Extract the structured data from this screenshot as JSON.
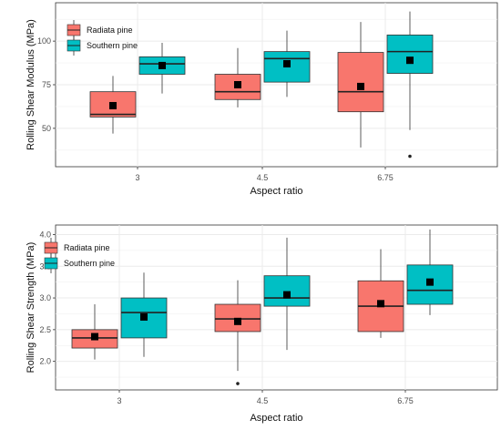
{
  "chart_data": [
    {
      "type": "box",
      "xlabel": "Aspect ratio",
      "ylabel": "Rolling Shear Modulus (MPa)",
      "categories": [
        "3",
        "4.5",
        "6.75"
      ],
      "yticks": [
        50,
        75,
        100
      ],
      "ylim": [
        28,
        122
      ],
      "grid": true,
      "legend_position": "top-left",
      "series": [
        {
          "name": "Radiata pine",
          "color": "#F8766D",
          "boxes": [
            {
              "min": 47,
              "q1": 56.5,
              "median": 58,
              "q3": 71,
              "max": 80,
              "mean": 63,
              "outliers": []
            },
            {
              "min": 62,
              "q1": 66.5,
              "median": 71,
              "q3": 81,
              "max": 96,
              "mean": 75,
              "outliers": []
            },
            {
              "min": 39,
              "q1": 59.5,
              "median": 71,
              "q3": 93.5,
              "max": 111,
              "mean": 74,
              "outliers": []
            }
          ]
        },
        {
          "name": "Southern pine",
          "color": "#00BFC4",
          "boxes": [
            {
              "min": 70,
              "q1": 81,
              "median": 87,
              "q3": 91,
              "max": 99,
              "mean": 86,
              "outliers": []
            },
            {
              "min": 68,
              "q1": 76.5,
              "median": 90,
              "q3": 94,
              "max": 106,
              "mean": 87,
              "outliers": []
            },
            {
              "min": 49,
              "q1": 81.5,
              "median": 94,
              "q3": 103.5,
              "max": 117,
              "mean": 89,
              "outliers": [
                34
              ]
            }
          ]
        }
      ]
    },
    {
      "type": "box",
      "xlabel": "Aspect ratio",
      "ylabel": "Rolling Shear Strength (MPa)",
      "categories": [
        "3",
        "4.5",
        "6.75"
      ],
      "yticks": [
        2.0,
        2.5,
        3.0,
        3.5,
        4.0
      ],
      "ylim": [
        1.55,
        4.15
      ],
      "grid": true,
      "legend_position": "top-left",
      "series": [
        {
          "name": "Radiata pine",
          "color": "#F8766D",
          "boxes": [
            {
              "min": 2.03,
              "q1": 2.21,
              "median": 2.37,
              "q3": 2.5,
              "max": 2.9,
              "mean": 2.39,
              "outliers": []
            },
            {
              "min": 1.85,
              "q1": 2.47,
              "median": 2.67,
              "q3": 2.9,
              "max": 3.28,
              "mean": 2.63,
              "outliers": [
                1.65
              ]
            },
            {
              "min": 2.37,
              "q1": 2.47,
              "median": 2.87,
              "q3": 3.27,
              "max": 3.77,
              "mean": 2.91,
              "outliers": []
            }
          ]
        },
        {
          "name": "Southern pine",
          "color": "#00BFC4",
          "boxes": [
            {
              "min": 2.07,
              "q1": 2.37,
              "median": 2.77,
              "q3": 3.0,
              "max": 3.4,
              "mean": 2.7,
              "outliers": []
            },
            {
              "min": 2.18,
              "q1": 2.87,
              "median": 3.0,
              "q3": 3.35,
              "max": 3.95,
              "mean": 3.05,
              "outliers": []
            },
            {
              "min": 2.73,
              "q1": 2.9,
              "median": 3.12,
              "q3": 3.52,
              "max": 4.08,
              "mean": 3.25,
              "outliers": []
            }
          ]
        }
      ]
    }
  ]
}
